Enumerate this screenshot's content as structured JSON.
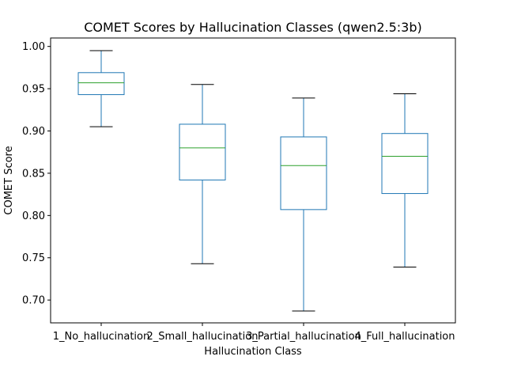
{
  "chart_data": {
    "type": "box",
    "title": "COMET Scores by Hallucination Classes (qwen2.5:3b)",
    "xlabel": "Hallucination Class",
    "ylabel": "COMET Score",
    "ylim": [
      0.673,
      1.01
    ],
    "yticks": [
      0.7,
      0.75,
      0.8,
      0.85,
      0.9,
      0.95,
      1.0
    ],
    "ytick_labels": [
      "0.70",
      "0.75",
      "0.80",
      "0.85",
      "0.90",
      "0.95",
      "1.00"
    ],
    "categories": [
      "1_No_hallucination",
      "2_Small_hallucination",
      "3_Partial_hallucination",
      "4_Full_hallucination"
    ],
    "boxes": [
      {
        "whisker_low": 0.905,
        "q1": 0.943,
        "median": 0.957,
        "q3": 0.969,
        "whisker_high": 0.995
      },
      {
        "whisker_low": 0.743,
        "q1": 0.842,
        "median": 0.88,
        "q3": 0.908,
        "whisker_high": 0.955
      },
      {
        "whisker_low": 0.687,
        "q1": 0.807,
        "median": 0.859,
        "q3": 0.893,
        "whisker_high": 0.939
      },
      {
        "whisker_low": 0.739,
        "q1": 0.826,
        "median": 0.87,
        "q3": 0.897,
        "whisker_high": 0.944
      }
    ],
    "colors": {
      "box": "#1f77b4",
      "median": "#2ca02c",
      "whisker_cap": "#000000",
      "axes": "#000000"
    },
    "grid": false
  }
}
